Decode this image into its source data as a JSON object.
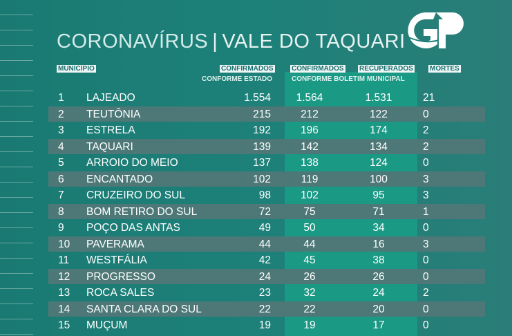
{
  "title": {
    "left": "CORONAVÍRUS",
    "sep": "|",
    "right": "VALE DO TAQUARI"
  },
  "logo": "GP",
  "headers": {
    "municipio": "MUNICÍPIO",
    "confirmados_estado": "CONFIRMADOS",
    "conforme_estado": "CONFORME ESTADO",
    "confirmados_municipal": "CONFIRMADOS",
    "recuperados": "RECUPERADOS",
    "conforme_boletim": "CONFORME BOLETIM MUNICIPAL",
    "mortes": "MORTES"
  },
  "rows": [
    {
      "n": "1",
      "name": "LAJEADO",
      "ce": "1.554",
      "cm": "1.564",
      "rc": "1.531",
      "mo": "21"
    },
    {
      "n": "2",
      "name": "TEUTÔNIA",
      "ce": "215",
      "cm": "212",
      "rc": "122",
      "mo": "0"
    },
    {
      "n": "3",
      "name": "ESTRELA",
      "ce": "192",
      "cm": "196",
      "rc": "174",
      "mo": "2"
    },
    {
      "n": "4",
      "name": "TAQUARI",
      "ce": "139",
      "cm": "142",
      "rc": "134",
      "mo": "2"
    },
    {
      "n": "5",
      "name": "ARROIO DO MEIO",
      "ce": "137",
      "cm": "138",
      "rc": "124",
      "mo": "0"
    },
    {
      "n": "6",
      "name": "ENCANTADO",
      "ce": "102",
      "cm": "119",
      "rc": "100",
      "mo": "3"
    },
    {
      "n": "7",
      "name": "CRUZEIRO DO SUL",
      "ce": "98",
      "cm": "102",
      "rc": "95",
      "mo": "3"
    },
    {
      "n": "8",
      "name": "BOM RETIRO DO SUL",
      "ce": "72",
      "cm": "75",
      "rc": "71",
      "mo": "1"
    },
    {
      "n": "9",
      "name": "POÇO DAS ANTAS",
      "ce": "49",
      "cm": "50",
      "rc": "34",
      "mo": "0"
    },
    {
      "n": "10",
      "name": "PAVERAMA",
      "ce": "44",
      "cm": "44",
      "rc": "16",
      "mo": "3"
    },
    {
      "n": "11",
      "name": "WESTFÁLIA",
      "ce": "42",
      "cm": "45",
      "rc": "38",
      "mo": "0"
    },
    {
      "n": "12",
      "name": "PROGRESSO",
      "ce": "24",
      "cm": "26",
      "rc": "26",
      "mo": "0"
    },
    {
      "n": "13",
      "name": "ROCA SALES",
      "ce": "23",
      "cm": "32",
      "rc": "24",
      "mo": "2"
    },
    {
      "n": "14",
      "name": "SANTA CLARA DO SUL",
      "ce": "22",
      "cm": "22",
      "rc": "20",
      "mo": "0"
    },
    {
      "n": "15",
      "name": "MUÇUM",
      "ce": "19",
      "cm": "19",
      "rc": "17",
      "mo": "0"
    }
  ]
}
